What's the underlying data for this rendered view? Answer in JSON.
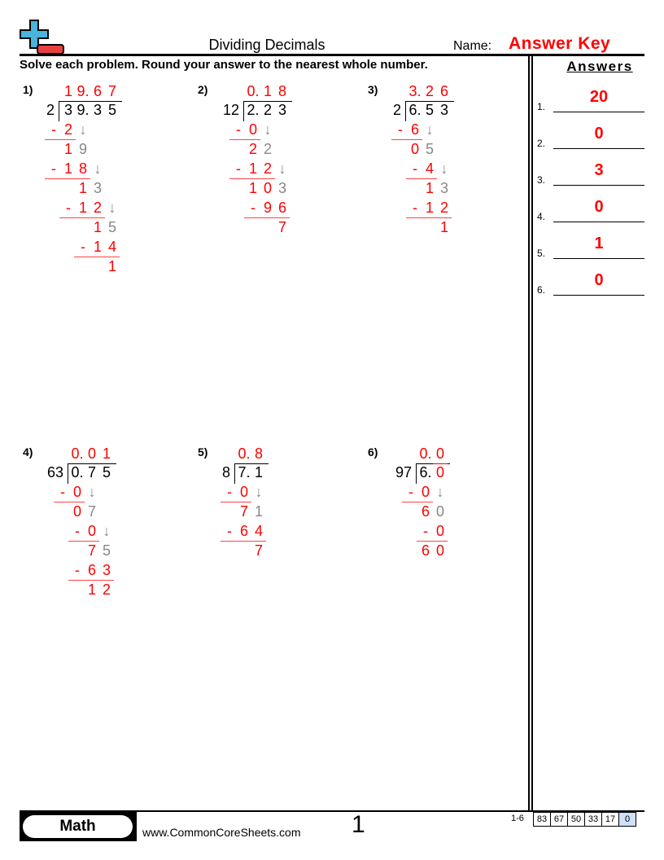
{
  "header": {
    "title": "Dividing Decimals",
    "name_label": "Name:",
    "name_value": "Answer Key",
    "instructions": "Solve each problem. Round your answer to the nearest whole number."
  },
  "colors": {
    "r": "#ff0000",
    "k": "#000000",
    "g": "#888888",
    "logo_blue": "#4ab4dc",
    "logo_red": "#e84040"
  },
  "problems": [
    {
      "label": "1)",
      "divisor": "2",
      "quotient": [
        "",
        "r:1",
        "r:9.",
        "r:6",
        "r:7"
      ],
      "dividend": [
        "",
        "k:3",
        "k:9.",
        "k:3",
        "k:5"
      ],
      "steps": [
        [
          "r:-",
          "r:2",
          "g:↓",
          "",
          ""
        ],
        [
          "",
          "r:1",
          "g:9",
          "",
          ""
        ],
        [
          "r:-",
          "r:1",
          "r:8",
          "g:↓",
          ""
        ],
        [
          "",
          "",
          "r:1",
          "g:3",
          ""
        ],
        [
          "",
          "r:-",
          "r:1",
          "r:2",
          "g:↓"
        ],
        [
          "",
          "",
          "",
          "r:1",
          "g:5"
        ],
        [
          "",
          "",
          "r:-",
          "r:1",
          "r:4"
        ],
        [
          "",
          "",
          "",
          "",
          "r:1"
        ]
      ]
    },
    {
      "label": "2)",
      "divisor": "12",
      "quotient": [
        "",
        "r:0.",
        "r:1",
        "r:8"
      ],
      "dividend": [
        "",
        "k:2.",
        "k:2",
        "k:3"
      ],
      "steps": [
        [
          "r:-",
          "r:0",
          "g:↓",
          ""
        ],
        [
          "",
          "r:2",
          "g:2",
          ""
        ],
        [
          "r:-",
          "r:1",
          "r:2",
          "g:↓"
        ],
        [
          "",
          "r:1",
          "r:0",
          "g:3"
        ],
        [
          "",
          "r:-",
          "r:9",
          "r:6"
        ],
        [
          "",
          "",
          "",
          "r:7"
        ]
      ]
    },
    {
      "label": "3)",
      "divisor": "2",
      "quotient": [
        "",
        "r:3.",
        "r:2",
        "r:6"
      ],
      "dividend": [
        "",
        "k:6.",
        "k:5",
        "k:3"
      ],
      "steps": [
        [
          "r:-",
          "r:6",
          "g:↓",
          ""
        ],
        [
          "",
          "r:0",
          "g:5",
          ""
        ],
        [
          "",
          "r:-",
          "r:4",
          "g:↓"
        ],
        [
          "",
          "",
          "r:1",
          "g:3"
        ],
        [
          "",
          "r:-",
          "r:1",
          "r:2"
        ],
        [
          "",
          "",
          "",
          "r:1"
        ]
      ]
    },
    {
      "label": "4)",
      "divisor": "63",
      "quotient": [
        "",
        "r:0.",
        "r:0",
        "r:1"
      ],
      "dividend": [
        "",
        "k:0.",
        "k:7",
        "k:5"
      ],
      "steps": [
        [
          "r:-",
          "r:0",
          "g:↓",
          ""
        ],
        [
          "",
          "r:0",
          "g:7",
          ""
        ],
        [
          "",
          "r:-",
          "r:0",
          "g:↓"
        ],
        [
          "",
          "",
          "r:7",
          "g:5"
        ],
        [
          "",
          "r:-",
          "r:6",
          "r:3"
        ],
        [
          "",
          "",
          "r:1",
          "r:2"
        ]
      ]
    },
    {
      "label": "5)",
      "divisor": "8",
      "quotient": [
        "",
        "r:0.",
        "r:8"
      ],
      "dividend": [
        "",
        "k:7.",
        "k:1"
      ],
      "steps": [
        [
          "r:-",
          "r:0",
          "g:↓"
        ],
        [
          "",
          "r:7",
          "g:1"
        ],
        [
          "r:-",
          "r:6",
          "r:4"
        ],
        [
          "",
          "",
          "r:7"
        ]
      ]
    },
    {
      "label": "6)",
      "divisor": "97",
      "quotient": [
        "",
        "r:0.",
        "r:0"
      ],
      "dividend": [
        "",
        "k:6.",
        "r:0"
      ],
      "steps": [
        [
          "r:-",
          "r:0",
          "g:↓"
        ],
        [
          "",
          "r:6",
          "g:0"
        ],
        [
          "",
          "r:-",
          "r:0"
        ],
        [
          "",
          "r:6",
          "r:0"
        ]
      ]
    }
  ],
  "answers": {
    "title": "Answers",
    "items": [
      {
        "num": "1.",
        "value": "20"
      },
      {
        "num": "2.",
        "value": "0"
      },
      {
        "num": "3.",
        "value": "3"
      },
      {
        "num": "4.",
        "value": "0"
      },
      {
        "num": "5.",
        "value": "1"
      },
      {
        "num": "6.",
        "value": "0"
      }
    ]
  },
  "footer": {
    "subject": "Math",
    "site": "www.CommonCoreSheets.com",
    "page": "1",
    "score_label": "1-6",
    "scores": [
      "83",
      "67",
      "50",
      "33",
      "17",
      "0"
    ]
  }
}
